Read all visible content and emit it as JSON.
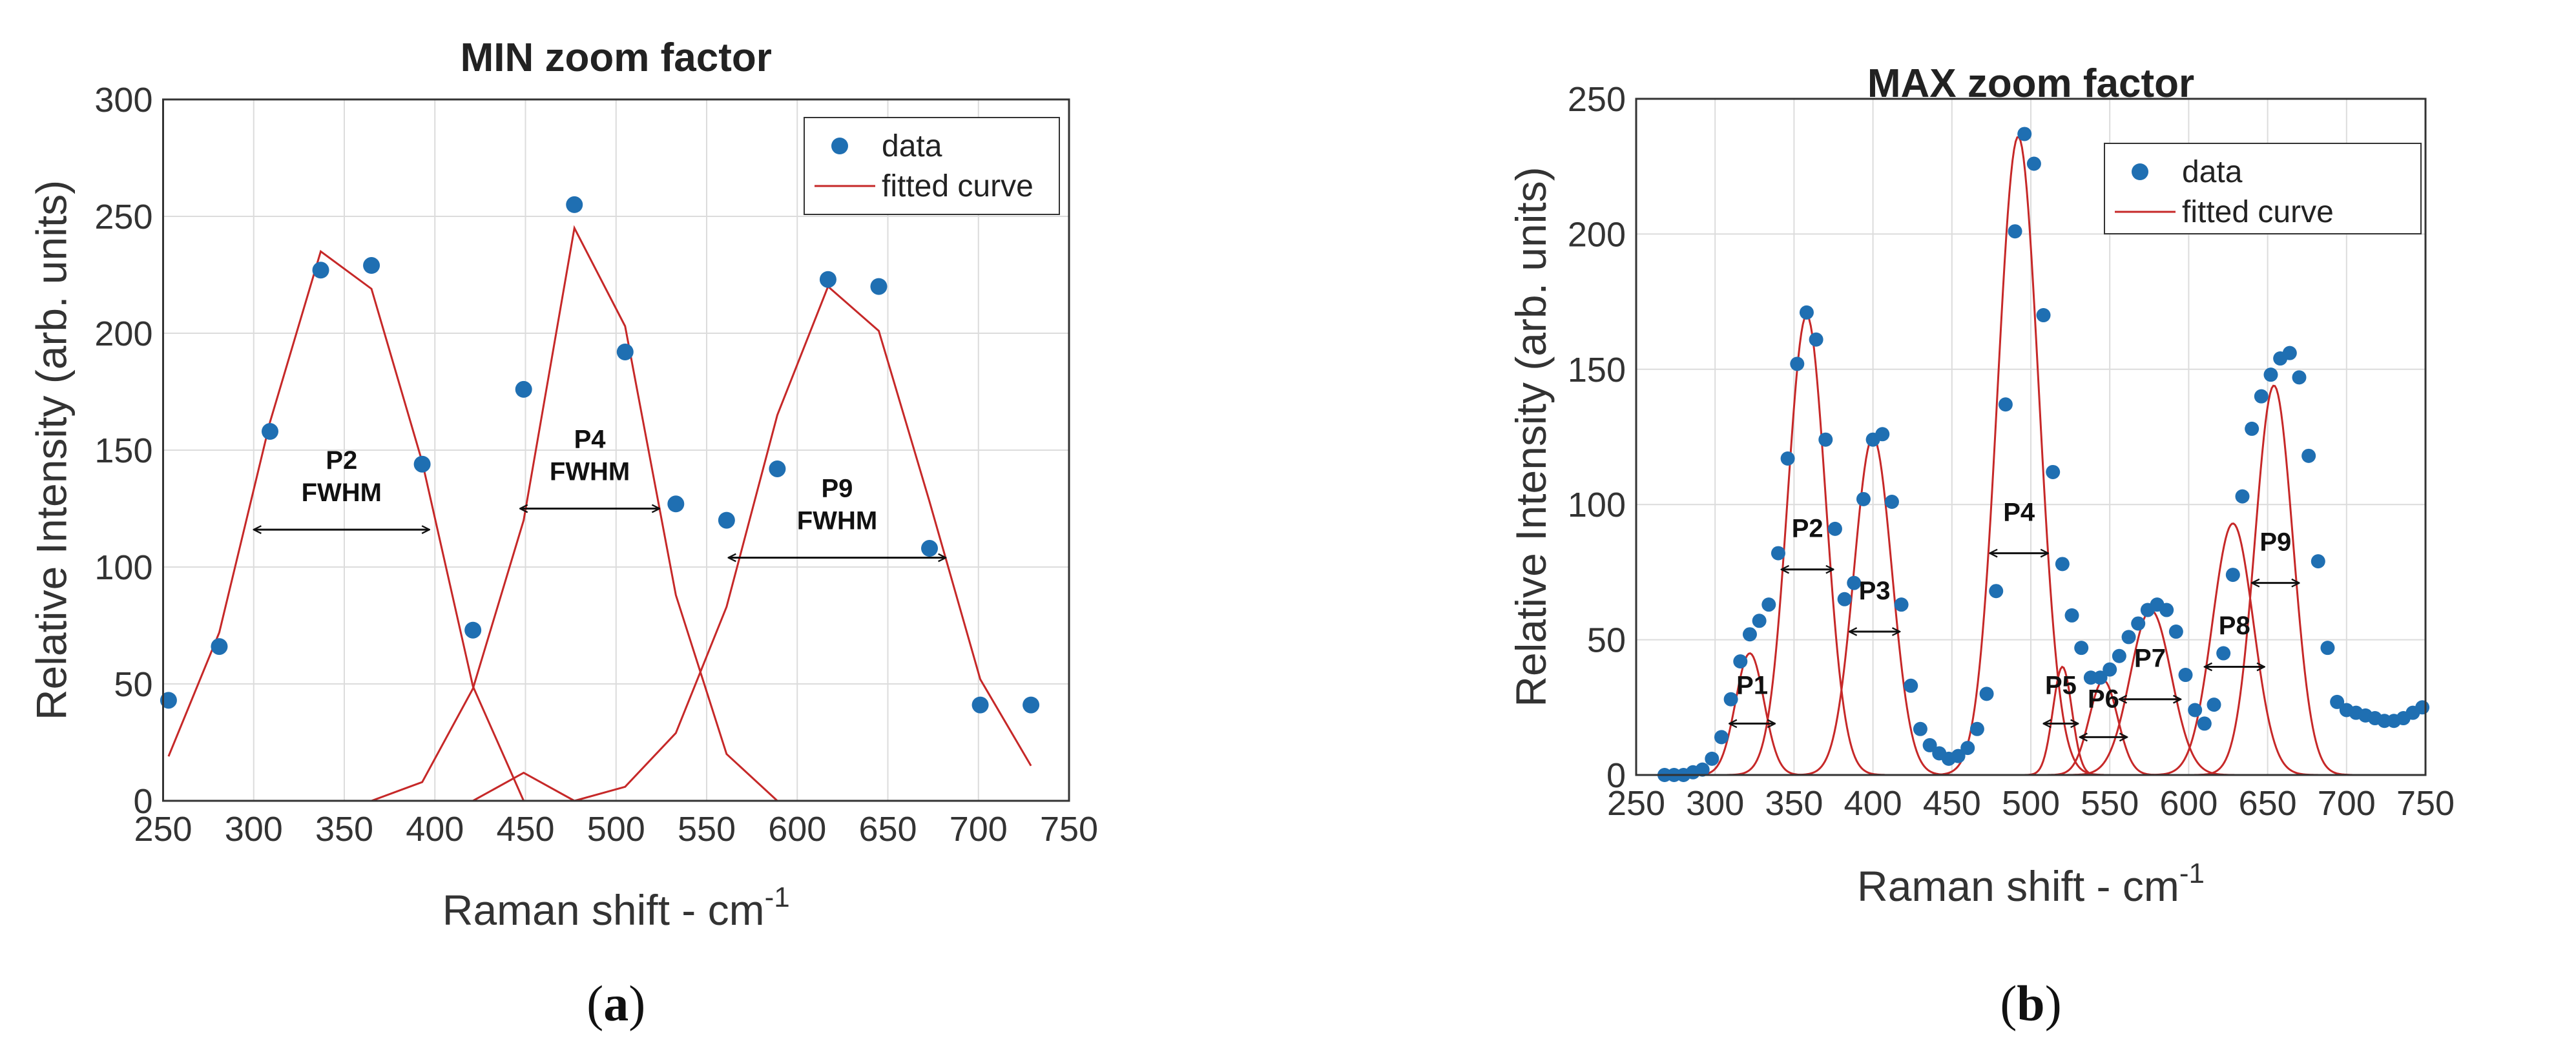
{
  "chart_data": [
    {
      "type": "scatter",
      "panel": "a",
      "title": "MIN zoom factor",
      "xlabel": "Raman shift - cm",
      "xlabel_sup": "-1",
      "ylabel": "Relative Intensity (arb. units)",
      "caption_letter": "a",
      "xlim": [
        250,
        750
      ],
      "ylim": [
        0,
        300
      ],
      "xticks": [
        250,
        300,
        350,
        400,
        450,
        500,
        550,
        600,
        650,
        700,
        750
      ],
      "yticks": [
        0,
        50,
        100,
        150,
        200,
        250,
        300
      ],
      "legend": {
        "position": "top-right",
        "entries": [
          "data",
          "fitted curve"
        ]
      },
      "colors": {
        "data": "#1f6fb2",
        "fit": "#c62828"
      },
      "data": {
        "x": [
          253,
          281,
          309,
          337,
          365,
          393,
          421,
          449,
          477,
          505,
          533,
          561,
          589,
          617,
          645,
          673,
          701,
          729
        ],
        "y": [
          43,
          66,
          158,
          227,
          229,
          144,
          73,
          176,
          255,
          192,
          127,
          120,
          142,
          223,
          220,
          108,
          41,
          41
        ]
      },
      "fits": [
        {
          "x": [
            253,
            281,
            309,
            337,
            365,
            393,
            421,
            449,
            477,
            505,
            533,
            561,
            589,
            617,
            645,
            673,
            701,
            729
          ],
          "y": [
            19,
            72,
            162,
            235,
            219,
            145,
            49,
            0,
            0,
            0,
            0,
            0,
            0,
            0,
            0,
            0,
            0,
            0
          ]
        },
        {
          "x": [
            253,
            281,
            309,
            337,
            365,
            393,
            421,
            449,
            477,
            505,
            533,
            561,
            589,
            617,
            645,
            673,
            701,
            729
          ],
          "y": [
            0,
            0,
            0,
            0,
            0,
            8,
            48,
            120,
            245,
            203,
            88,
            20,
            0,
            0,
            0,
            0,
            0,
            0
          ]
        },
        {
          "x": [
            253,
            281,
            309,
            337,
            365,
            393,
            421,
            449,
            477,
            505,
            533,
            561,
            589,
            617,
            645,
            673,
            701,
            729
          ],
          "y": [
            0,
            0,
            0,
            0,
            0,
            0,
            0,
            12,
            0,
            6,
            29,
            83,
            165,
            220,
            201,
            128,
            52,
            15
          ]
        }
      ],
      "annotations": [
        {
          "label": "P2",
          "sublabel": "FWHM",
          "x1": 300,
          "x2": 397,
          "y": 116,
          "label_y": 142
        },
        {
          "label": "P4",
          "sublabel": "FWHM",
          "x1": 447,
          "x2": 524,
          "y": 125,
          "label_y": 151
        },
        {
          "label": "P9",
          "sublabel": "FWHM",
          "x1": 562,
          "x2": 682,
          "y": 104,
          "label_y": 130
        }
      ]
    },
    {
      "type": "scatter",
      "panel": "b",
      "title": "MAX zoom factor",
      "xlabel": "Raman shift - cm",
      "xlabel_sup": "-1",
      "ylabel": "Relative Intensity (arb. units)",
      "caption_letter": "b",
      "xlim": [
        250,
        750
      ],
      "ylim": [
        0,
        250
      ],
      "xticks": [
        250,
        300,
        350,
        400,
        450,
        500,
        550,
        600,
        650,
        700,
        750
      ],
      "yticks": [
        0,
        50,
        100,
        150,
        200,
        250
      ],
      "legend": {
        "position": "top-right",
        "entries": [
          "data",
          "fitted curve"
        ]
      },
      "colors": {
        "data": "#1f6fb2",
        "fit": "#c62828"
      },
      "data": {
        "x": [
          268,
          274,
          280,
          286,
          292,
          298,
          304,
          310,
          316,
          322,
          328,
          334,
          340,
          346,
          352,
          358,
          364,
          370,
          376,
          382,
          388,
          394,
          400,
          406,
          412,
          418,
          424,
          430,
          436,
          442,
          448,
          454,
          460,
          466,
          472,
          478,
          484,
          490,
          496,
          502,
          508,
          514,
          520,
          526,
          532,
          538,
          544,
          550,
          556,
          562,
          568,
          574,
          580,
          586,
          592,
          598,
          604,
          610,
          616,
          622,
          628,
          634,
          640,
          646,
          652,
          658,
          664,
          670,
          676,
          682,
          688,
          694,
          700,
          706,
          712,
          718,
          724,
          730,
          736,
          742,
          748
        ],
        "y": [
          0,
          0,
          0,
          1,
          2,
          6,
          14,
          28,
          42,
          52,
          57,
          63,
          82,
          117,
          152,
          171,
          161,
          124,
          91,
          65,
          71,
          102,
          124,
          126,
          101,
          63,
          33,
          17,
          11,
          8,
          6,
          7,
          10,
          17,
          30,
          68,
          137,
          201,
          237,
          226,
          170,
          112,
          78,
          59,
          47,
          36,
          36,
          39,
          44,
          51,
          56,
          61,
          63,
          61,
          53,
          37,
          24,
          19,
          26,
          45,
          74,
          103,
          128,
          140,
          148,
          154,
          156,
          147,
          118,
          79,
          47,
          27,
          24,
          23,
          22,
          21,
          20,
          20,
          21,
          23,
          25
        ]
      },
      "fits": [
        {
          "peak": "P1",
          "center": 322,
          "amplitude": 45,
          "sigma": 9
        },
        {
          "peak": "P2",
          "center": 358,
          "amplitude": 170,
          "sigma": 12
        },
        {
          "peak": "P3",
          "center": 400,
          "amplitude": 125,
          "sigma": 12
        },
        {
          "peak": "P4",
          "center": 492,
          "amplitude": 236,
          "sigma": 13
        },
        {
          "peak": "P5",
          "center": 520,
          "amplitude": 40,
          "sigma": 6
        },
        {
          "peak": "P6",
          "center": 546,
          "amplitude": 35,
          "sigma": 9
        },
        {
          "peak": "P7",
          "center": 576,
          "amplitude": 61,
          "sigma": 13
        },
        {
          "peak": "P8",
          "center": 628,
          "amplitude": 93,
          "sigma": 13
        },
        {
          "peak": "P9",
          "center": 654,
          "amplitude": 144,
          "sigma": 12
        }
      ],
      "annotations": [
        {
          "label": "P1",
          "x1": 309,
          "x2": 338,
          "y": 19,
          "label_y": 30
        },
        {
          "label": "P2",
          "x1": 342,
          "x2": 375,
          "y": 76,
          "label_y": 88
        },
        {
          "label": "P3",
          "x1": 385,
          "x2": 417,
          "y": 53,
          "label_y": 65
        },
        {
          "label": "P4",
          "x1": 474,
          "x2": 511,
          "y": 82,
          "label_y": 94
        },
        {
          "label": "P5",
          "x1": 508,
          "x2": 530,
          "y": 19,
          "label_y": 30
        },
        {
          "label": "P6",
          "x1": 531,
          "x2": 561,
          "y": 14,
          "label_y": 25
        },
        {
          "label": "P7",
          "x1": 556,
          "x2": 595,
          "y": 28,
          "label_y": 40
        },
        {
          "label": "P8",
          "x1": 610,
          "x2": 648,
          "y": 40,
          "label_y": 52
        },
        {
          "label": "P9",
          "x1": 640,
          "x2": 670,
          "y": 71,
          "label_y": 83
        }
      ]
    }
  ]
}
